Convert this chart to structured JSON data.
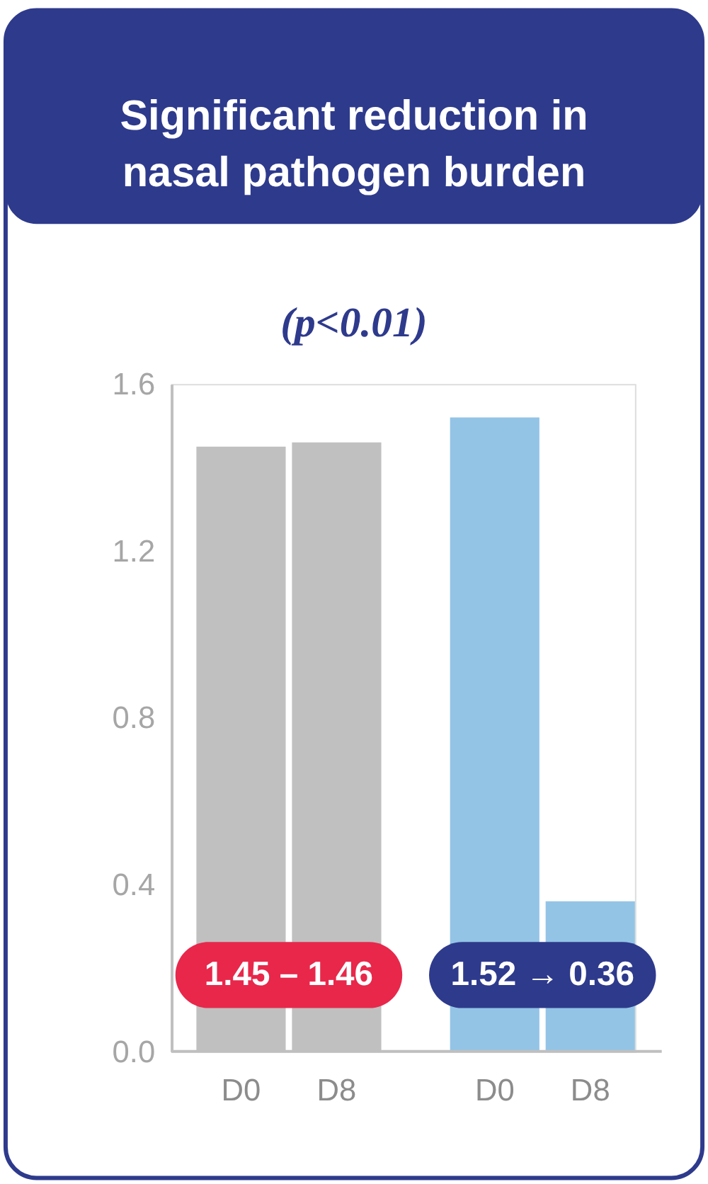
{
  "chart_data": {
    "type": "bar",
    "title": "Significant reduction in nasal pathogen burden",
    "subtitle": "(p<0.01)",
    "categories": [
      "D0",
      "D8",
      "D0",
      "D8"
    ],
    "values": [
      1.45,
      1.46,
      1.52,
      0.36
    ],
    "colors": [
      "#c0c0c0",
      "#c0c0c0",
      "#93c4e6",
      "#93c4e6"
    ],
    "ylim": [
      0,
      1.6
    ],
    "yticks": [
      {
        "value": 0,
        "label": "0.0"
      },
      {
        "value": 0.4,
        "label": "0.4"
      },
      {
        "value": 0.8,
        "label": "0.8"
      },
      {
        "value": 1.2,
        "label": "1.2"
      },
      {
        "value": 1.6,
        "label": "1.6"
      }
    ],
    "annotations": [
      "1.45 – 1.46",
      "1.52 → 0.36"
    ],
    "grid": false
  }
}
